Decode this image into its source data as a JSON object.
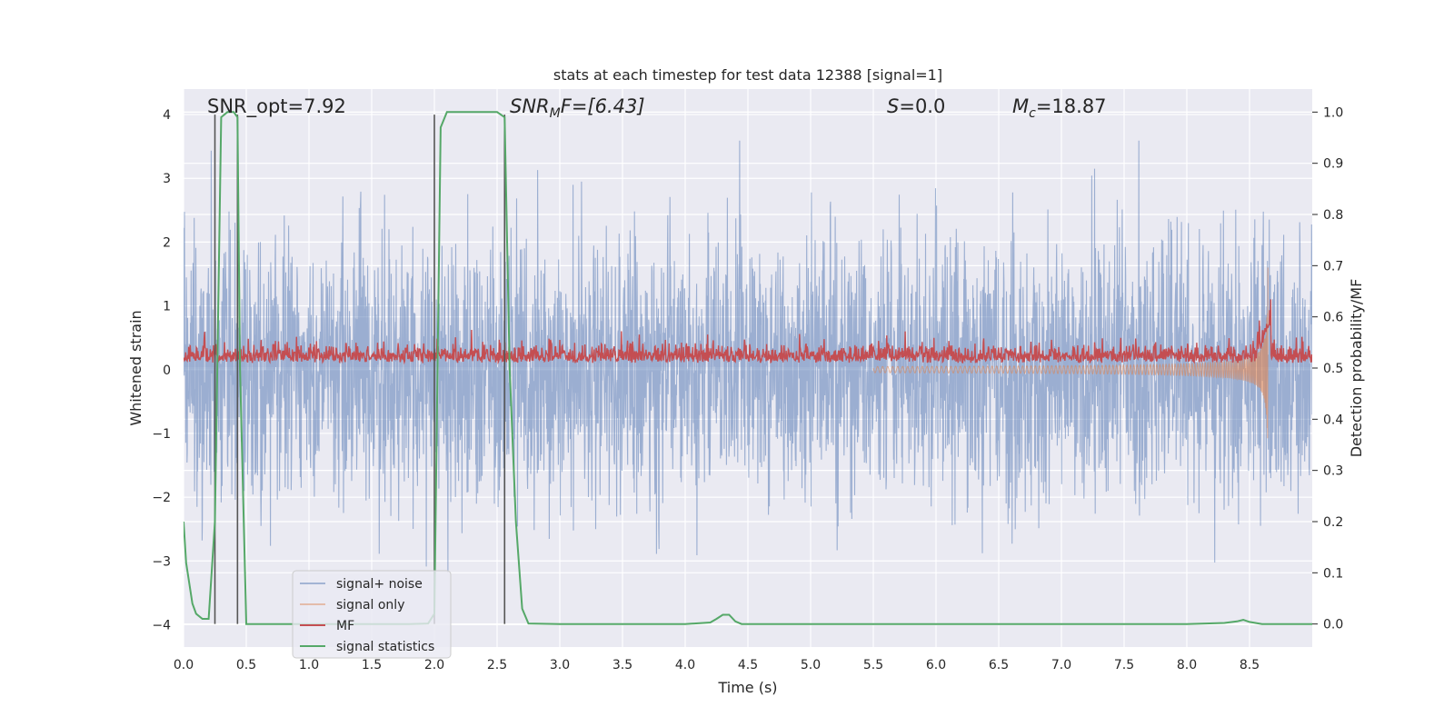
{
  "chart_data": {
    "type": "line",
    "title": "stats at each timestep for test data 12388 [signal=1]",
    "xlabel": "Time (s)",
    "ylabel_left": "Whitened strain",
    "ylabel_right": "Detection probability/MF",
    "xlim": [
      0,
      9.0
    ],
    "ylim_left": [
      -4.35,
      4.4
    ],
    "ylim_right": [
      -0.045,
      1.045
    ],
    "x_ticks": [
      "0.0",
      "0.5",
      "1.0",
      "1.5",
      "2.0",
      "2.5",
      "3.0",
      "3.5",
      "4.0",
      "4.5",
      "5.0",
      "5.5",
      "6.0",
      "6.5",
      "7.0",
      "7.5",
      "8.0",
      "8.5"
    ],
    "y_ticks_left": [
      "4",
      "3",
      "2",
      "1",
      "0",
      "−1",
      "−2",
      "−3",
      "−4"
    ],
    "y_ticks_right": [
      "1.0",
      "0.9",
      "0.8",
      "0.7",
      "0.6",
      "0.5",
      "0.4",
      "0.3",
      "0.2",
      "0.1",
      "0.0"
    ],
    "grid": true,
    "legend_placement": "lower-left",
    "annotations": {
      "snr_opt": "SNR_opt=7.92",
      "snr_mf_main": "SNR",
      "snr_mf_sub": "M",
      "snr_mf_rest": "F=[6.43]",
      "s_main": "S",
      "s_rest": "=0.0",
      "mc_main": "M",
      "mc_sub": "c",
      "mc_rest": "=18.87"
    },
    "vertical_markers_s": [
      0.25,
      0.43,
      2.0,
      2.56
    ],
    "series": [
      {
        "name": "signal+ noise",
        "color": "#4c72b0",
        "noise_sigma": 1.0,
        "observed_max": 4.0,
        "observed_min": -4.0
      },
      {
        "name": "signal only",
        "color": "#dd8452",
        "chirp_start_s": 5.5,
        "chirp_end_s": 8.65,
        "peak_amplitude": 1.75
      },
      {
        "name": "MF",
        "color": "#c44e52",
        "baseline": 0.1,
        "typical_peak": 0.45
      },
      {
        "name": "signal statistics",
        "color": "#55a868",
        "x": [
          0.0,
          0.02,
          0.07,
          0.1,
          0.15,
          0.2,
          0.25,
          0.3,
          0.35,
          0.4,
          0.43,
          0.45,
          0.5,
          0.55,
          0.6,
          1.0,
          1.5,
          1.8,
          1.95,
          2.0,
          2.05,
          2.1,
          2.15,
          2.3,
          2.4,
          2.5,
          2.56,
          2.6,
          2.65,
          2.7,
          2.75,
          3.0,
          3.5,
          4.0,
          4.2,
          4.25,
          4.3,
          4.35,
          4.4,
          4.45,
          5.0,
          6.0,
          7.0,
          7.7,
          8.0,
          8.3,
          8.4,
          8.45,
          8.5,
          8.6,
          9.0
        ],
        "y": [
          0.2,
          0.12,
          0.04,
          0.02,
          0.01,
          0.01,
          0.2,
          0.99,
          1.0,
          1.0,
          0.99,
          0.5,
          0.0,
          0.0,
          0.0,
          0.0,
          0.0,
          0.0,
          0.001,
          0.02,
          0.97,
          1.0,
          1.0,
          1.0,
          1.0,
          1.0,
          0.99,
          0.5,
          0.2,
          0.03,
          0.001,
          0.0,
          0.0,
          0.0,
          0.003,
          0.01,
          0.018,
          0.018,
          0.005,
          0.0,
          0.0,
          0.0,
          0.0,
          0.0,
          0.0,
          0.002,
          0.005,
          0.008,
          0.004,
          0.0,
          0.0
        ]
      }
    ],
    "colors": {
      "axes_bg": "#eaeaf2",
      "grid": "#ffffff",
      "marker_line": "#555555"
    }
  }
}
